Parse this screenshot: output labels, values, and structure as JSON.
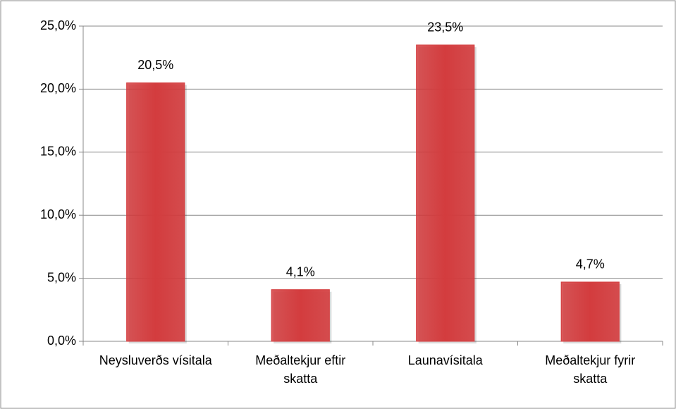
{
  "chart_data": {
    "type": "bar",
    "categories": [
      "Neysluverðs vísitala",
      "Meðaltekjur eftir skatta",
      "Launavísitala",
      "Meðaltekjur fyrir skatta"
    ],
    "values": [
      20.5,
      4.1,
      23.5,
      4.7
    ],
    "value_labels": [
      "20,5%",
      "4,1%",
      "23,5%",
      "4,7%"
    ],
    "color": "#d33c3e",
    "ylim": [
      0,
      25
    ],
    "yticks": [
      {
        "value": 0,
        "label": "0,0%"
      },
      {
        "value": 5,
        "label": "5,0%"
      },
      {
        "value": 10,
        "label": "10,0%"
      },
      {
        "value": 15,
        "label": "15,0%"
      },
      {
        "value": 20,
        "label": "20,0%"
      },
      {
        "value": 25,
        "label": "25,0%"
      }
    ],
    "grid": true
  }
}
